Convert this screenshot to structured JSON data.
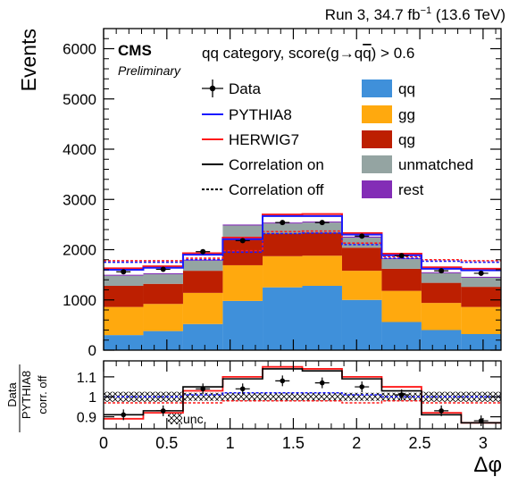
{
  "header": {
    "lumi_prefix": "Run 3, 34.7 fb",
    "lumi_exp": "−1",
    "lumi_suffix": " (13.6 TeV)"
  },
  "cms": {
    "label": "CMS",
    "sublabel": "Preliminary"
  },
  "category": {
    "prefix": "qq category, score(g",
    "arrow": "→",
    "q1": "q",
    "q2": "q",
    "suffix": ") > 0.6"
  },
  "legend": {
    "left": [
      {
        "label": "Data",
        "style": "data"
      },
      {
        "label": "PYTHIA8",
        "style": "line",
        "color": "#1a1aff",
        "dash": false
      },
      {
        "label": "HERWIG7",
        "style": "line",
        "color": "#ff1a1a",
        "dash": false
      },
      {
        "label": "Correlation on",
        "style": "line",
        "color": "#000000",
        "dash": false
      },
      {
        "label": "Correlation off",
        "style": "line",
        "color": "#000000",
        "dash": true
      }
    ],
    "right": [
      {
        "label": "qq",
        "color": "#3f90da"
      },
      {
        "label": "gg",
        "color": "#ffa90e"
      },
      {
        "label": "qg",
        "color": "#bd1f01"
      },
      {
        "label": "unmatched",
        "color": "#94a4a2"
      },
      {
        "label": "rest",
        "color": "#832db6"
      }
    ]
  },
  "chart_data": [
    {
      "type": "bar",
      "stacked": true,
      "bin_edges": [
        0,
        0.314,
        0.628,
        0.942,
        1.257,
        1.571,
        1.885,
        2.199,
        2.513,
        2.827,
        3.142
      ],
      "ylabel": "Events",
      "ylim": [
        0,
        6400
      ],
      "yticks": [
        0,
        1000,
        2000,
        3000,
        4000,
        5000,
        6000
      ],
      "series": [
        {
          "name": "qq",
          "color": "#3f90da",
          "values": [
            300,
            380,
            520,
            980,
            1250,
            1280,
            1000,
            560,
            400,
            320
          ]
        },
        {
          "name": "gg",
          "color": "#ffa90e",
          "values": [
            560,
            540,
            620,
            710,
            620,
            600,
            580,
            620,
            540,
            540
          ]
        },
        {
          "name": "qg",
          "color": "#bd1f01",
          "values": [
            420,
            400,
            440,
            550,
            450,
            460,
            460,
            440,
            400,
            400
          ]
        },
        {
          "name": "unmatched",
          "color": "#94a4a2",
          "values": [
            200,
            190,
            200,
            240,
            200,
            200,
            200,
            190,
            190,
            180
          ]
        },
        {
          "name": "rest",
          "color": "#832db6",
          "values": [
            20,
            20,
            20,
            20,
            20,
            20,
            20,
            20,
            20,
            20
          ]
        }
      ],
      "data_points": [
        1560,
        1610,
        1960,
        2180,
        2540,
        2540,
        2270,
        1880,
        1580,
        1530
      ],
      "pythia8_corr_on": [
        1600,
        1640,
        1900,
        2210,
        2670,
        2670,
        2300,
        1890,
        1620,
        1590
      ],
      "herwig7_corr_on": [
        1630,
        1670,
        1930,
        2240,
        2700,
        2710,
        2330,
        1920,
        1650,
        1620
      ],
      "pythia8_corr_off": [
        1750,
        1750,
        1800,
        1950,
        2320,
        2330,
        2100,
        1830,
        1770,
        1750
      ],
      "herwig7_corr_off": [
        1780,
        1780,
        1830,
        1980,
        2360,
        2370,
        2130,
        1860,
        1800,
        1780
      ]
    },
    {
      "type": "line",
      "ylabel_line1": "Data",
      "ylabel_line2": "PYTHIA8",
      "ylabel_line3": "corr. off",
      "xlabel": "Δφ",
      "xlim": [
        0,
        3.142
      ],
      "ylim": [
        0.84,
        1.18
      ],
      "yticks": [
        0.9,
        1,
        1.1
      ],
      "xticks": [
        0,
        0.5,
        1,
        1.5,
        2,
        2.5,
        3
      ],
      "unc_label": "unc.",
      "data_ratio": [
        0.91,
        0.93,
        1.04,
        1.04,
        1.08,
        1.07,
        1.05,
        1.01,
        0.93,
        0.88
      ],
      "pythia8_on_ratio": [
        0.91,
        0.93,
        1.05,
        1.09,
        1.14,
        1.13,
        1.09,
        1.03,
        0.91,
        0.87
      ],
      "herwig7_on_ratio": [
        0.89,
        0.92,
        1.03,
        1.1,
        1.15,
        1.14,
        1.1,
        1.05,
        0.92,
        0.87
      ],
      "pythia8_off_ratio": [
        1.0,
        1.0,
        1.01,
        1.02,
        1.02,
        1.02,
        1.01,
        1.0,
        1.0,
        1.0
      ],
      "herwig7_off_ratio": [
        0.97,
        0.97,
        0.97,
        0.98,
        0.98,
        0.98,
        0.97,
        0.98,
        0.97,
        0.97
      ],
      "unc_band": [
        0.025,
        0.025,
        0.02,
        0.02,
        0.02,
        0.02,
        0.02,
        0.02,
        0.025,
        0.025
      ]
    }
  ]
}
